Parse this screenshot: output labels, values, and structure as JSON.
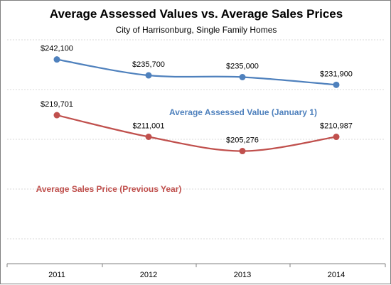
{
  "chart_data": {
    "type": "line",
    "title": "Average Assessed Values vs. Average Sales Prices",
    "subtitle": "City of Harrisonburg,  Single Family Homes",
    "categories": [
      "2011",
      "2012",
      "2013",
      "2014"
    ],
    "ylim": [
      160000,
      250000
    ],
    "grid": true,
    "series": [
      {
        "name": "Average  Assessed  Value  (January 1)",
        "color": "#4f81bd",
        "values": [
          242100,
          235700,
          235000,
          231900
        ],
        "labels": [
          "$242,100",
          "$235,700",
          "$235,000",
          "$231,900"
        ]
      },
      {
        "name": "Average  Sales  Price  (Previous Year)",
        "color": "#c0504d",
        "values": [
          219701,
          211001,
          205276,
          210987
        ],
        "labels": [
          "$219,701",
          "$211,001",
          "$205,276",
          "$210,987"
        ]
      }
    ]
  }
}
